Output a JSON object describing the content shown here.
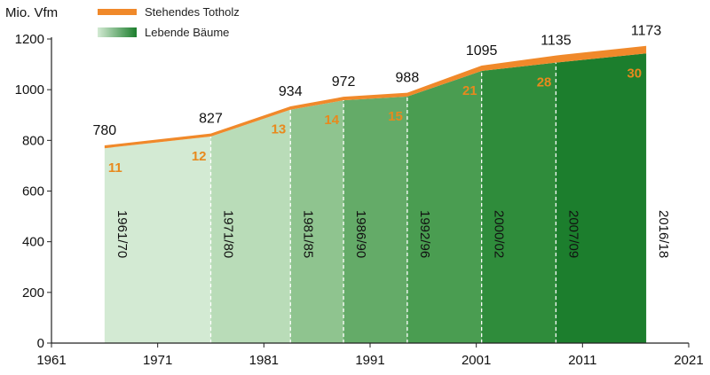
{
  "chart_data": {
    "type": "area",
    "ylabel": "Mio. Vfm",
    "xlim": [
      1961,
      2021
    ],
    "ylim": [
      0,
      1200
    ],
    "x_ticks": [
      1961,
      1971,
      1981,
      1991,
      2001,
      2011,
      2021
    ],
    "y_ticks": [
      0,
      200,
      400,
      600,
      800,
      1000,
      1200
    ],
    "legend": {
      "placement": "top-left",
      "entries": [
        {
          "label": "Stehendes Totholz",
          "color": "#f0892a"
        },
        {
          "label": "Lebende Bäume",
          "color": "#3a9a45"
        }
      ]
    },
    "x": [
      1966,
      1976,
      1983.5,
      1988.5,
      1994.5,
      2001.5,
      2008.5,
      2017
    ],
    "totals": [
      780,
      827,
      934,
      972,
      988,
      1095,
      1135,
      1173
    ],
    "deadwood": [
      11,
      12,
      13,
      14,
      15,
      21,
      28,
      30
    ],
    "periods": [
      {
        "label": "1961/70",
        "x_start": 1966,
        "x_end": 1976,
        "color": "#d3ead3"
      },
      {
        "label": "1971/80",
        "x_start": 1976,
        "x_end": 1983.5,
        "color": "#b9dcb8"
      },
      {
        "label": "1981/85",
        "x_start": 1983.5,
        "x_end": 1988.5,
        "color": "#8fc48f"
      },
      {
        "label": "1986/90",
        "x_start": 1988.5,
        "x_end": 1994.5,
        "color": "#64ab68"
      },
      {
        "label": "1992/96",
        "x_start": 1994.5,
        "x_end": 2001.5,
        "color": "#4a9d51"
      },
      {
        "label": "2000/02",
        "x_start": 2001.5,
        "x_end": 2008.5,
        "color": "#2f8c3b"
      },
      {
        "label": "2007/09",
        "x_start": 2008.5,
        "x_end": 2017,
        "color": "#1c7e2d"
      },
      {
        "label": "2016/18",
        "x_start": 2017,
        "x_end": 2017,
        "color": "#1c7e2d"
      }
    ]
  }
}
